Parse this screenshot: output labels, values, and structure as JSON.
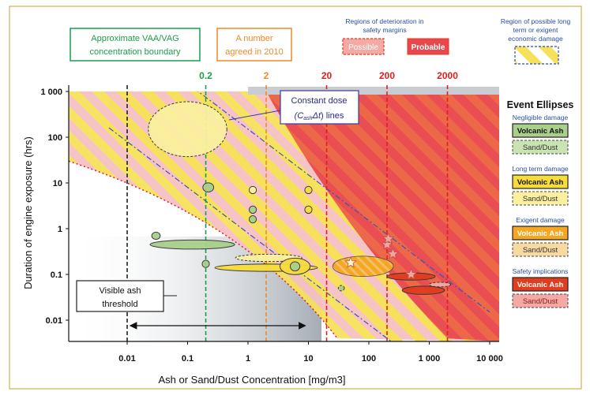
{
  "chart_data": {
    "type": "scatter",
    "xlabel": "Ash or Sand/Dust Concentration [mg/m3]",
    "ylabel": "Duration of engine exposure (hrs)",
    "xscale": "log",
    "yscale": "log",
    "xlim": [
      0.005,
      10000
    ],
    "ylim": [
      0.003,
      1000
    ],
    "x_tick_labels": [
      "0.01",
      "0.1",
      "1",
      "10",
      "100",
      "1 000",
      "10 000"
    ],
    "x_tick_values": [
      0.01,
      0.1,
      1,
      10,
      100,
      1000,
      10000
    ],
    "y_tick_labels": [
      "0.01",
      "0.1",
      "1",
      "10",
      "100",
      "1 000"
    ],
    "y_tick_values": [
      0.01,
      0.1,
      1,
      10,
      100,
      1000
    ],
    "vlines": [
      {
        "x": 0.01,
        "label": "",
        "color": "#222222"
      },
      {
        "x": 0.2,
        "label": "0.2",
        "color": "#1a9e4a"
      },
      {
        "x": 2,
        "label": "2",
        "color": "#f08a24"
      },
      {
        "x": 20,
        "label": "20",
        "color": "#e02020"
      },
      {
        "x": 200,
        "label": "200",
        "color": "#e02020"
      },
      {
        "x": 2000,
        "label": "2000",
        "color": "#e02020"
      }
    ],
    "annotations": {
      "vaa": "Approximate VAA/VAG concentration boundary",
      "agreed": "A number agreed in 2010",
      "dose_main": "Constant dose",
      "dose_sub": "(C",
      "dose_sub2": "ash",
      "dose_sub3": "Δt) lines",
      "visible_main": "Visible ash",
      "visible_sub": "threshold",
      "regions_title": "Regions of deterioration in safety margins",
      "possible": "Possible",
      "probable": "Probable",
      "longterm_title": "Region of possible long term or exigent economic damage"
    },
    "legend": {
      "title": "Event Ellipses",
      "groups": [
        {
          "label": "Negligible damage",
          "volcanic": "Volcanic Ash",
          "sand": "Sand/Dust",
          "volcanic_color": "#a9cf8a",
          "sand_color": "#c9e4b2"
        },
        {
          "label": "Long term damage",
          "volcanic": "Volcanic Ash",
          "sand": "Sand/Dust",
          "volcanic_color": "#f7dc3c",
          "sand_color": "#fbf0a0"
        },
        {
          "label": "Exigent damage",
          "volcanic": "Volcanic Ash",
          "sand": "Sand/Dust",
          "volcanic_color": "#f5a623",
          "sand_color": "#f8d9a0"
        },
        {
          "label": "Safety implications",
          "volcanic": "Volcanic Ash",
          "sand": "Sand/Dust",
          "volcanic_color": "#e03c1e",
          "sand_color": "#f5a9a4"
        }
      ]
    },
    "events": [
      {
        "x": 0.1,
        "y": 150,
        "rx_dec": 0.65,
        "ry_dec": 0.6,
        "kind": "Sand/Dust",
        "color": "#fbf0a0"
      },
      {
        "x": 0.22,
        "y": 8,
        "rx_dec": 0.09,
        "ry_dec": 0.1,
        "kind": "Volcanic Ash",
        "color": "#a9cf8a"
      },
      {
        "x": 1.2,
        "y": 7,
        "rx_dec": 0.06,
        "ry_dec": 0.08,
        "kind": "Volcanic Ash",
        "color": "#fbf0a0"
      },
      {
        "x": 1.2,
        "y": 2.6,
        "rx_dec": 0.06,
        "ry_dec": 0.08,
        "kind": "Volcanic Ash",
        "color": "#a9cf8a"
      },
      {
        "x": 1.2,
        "y": 1.6,
        "rx_dec": 0.06,
        "ry_dec": 0.08,
        "kind": "Volcanic Ash",
        "color": "#a9cf8a"
      },
      {
        "x": 10,
        "y": 7,
        "rx_dec": 0.06,
        "ry_dec": 0.08,
        "kind": "Volcanic Ash",
        "color": "#f7dc3c"
      },
      {
        "x": 10,
        "y": 2.6,
        "rx_dec": 0.06,
        "ry_dec": 0.08,
        "kind": "Volcanic Ash",
        "color": "#f7dc3c"
      },
      {
        "x": 0.03,
        "y": 0.7,
        "rx_dec": 0.07,
        "ry_dec": 0.08,
        "kind": "Volcanic Ash",
        "color": "#a9cf8a"
      },
      {
        "x": 0.12,
        "y": 0.45,
        "rx_dec": 0.7,
        "ry_dec": 0.1,
        "kind": "Volcanic Ash",
        "color": "#a9cf8a"
      },
      {
        "x": 2.2,
        "y": 0.23,
        "rx_dec": 0.55,
        "ry_dec": 0.08,
        "kind": "Sand/Dust",
        "color": "#fbf0a0"
      },
      {
        "x": 0.2,
        "y": 0.17,
        "rx_dec": 0.06,
        "ry_dec": 0.08,
        "kind": "Volcanic Ash",
        "color": "#a9cf8a"
      },
      {
        "x": 2,
        "y": 0.14,
        "rx_dec": 0.85,
        "ry_dec": 0.08,
        "kind": "Volcanic Ash",
        "color": "#f7dc3c"
      },
      {
        "x": 6,
        "y": 0.15,
        "rx_dec": 0.25,
        "ry_dec": 0.18,
        "kind": "Volcanic Ash",
        "color": "#f7dc3c"
      },
      {
        "x": 6,
        "y": 0.15,
        "rx_dec": 0.08,
        "ry_dec": 0.1,
        "kind": "Volcanic Ash",
        "color": "#a9cf8a"
      },
      {
        "x": 80,
        "y": 0.15,
        "rx_dec": 0.5,
        "ry_dec": 0.22,
        "kind": "Volcanic Ash",
        "color": "#f5a623"
      },
      {
        "x": 500,
        "y": 0.09,
        "rx_dec": 0.4,
        "ry_dec": 0.08,
        "kind": "Volcanic Ash",
        "color": "#e03c1e"
      },
      {
        "x": 800,
        "y": 0.045,
        "rx_dec": 0.35,
        "ry_dec": 0.09,
        "kind": "Volcanic Ash",
        "color": "#e03c1e"
      },
      {
        "x": 35,
        "y": 0.05,
        "rx_dec": 0.05,
        "ry_dec": 0.06,
        "kind": "Sand/Dust",
        "color": "#a9cf8a"
      },
      {
        "x": 1500,
        "y": 0.06,
        "rx_dec": 0.18,
        "ry_dec": 0.05,
        "kind": "Sand/Dust",
        "color": "#f5a9a4"
      }
    ],
    "stars": [
      {
        "x": 50,
        "y": 0.18
      },
      {
        "x": 200,
        "y": 0.45
      },
      {
        "x": 250,
        "y": 0.28
      },
      {
        "x": 500,
        "y": 0.1
      },
      {
        "x": 210,
        "y": 0.6
      }
    ]
  }
}
